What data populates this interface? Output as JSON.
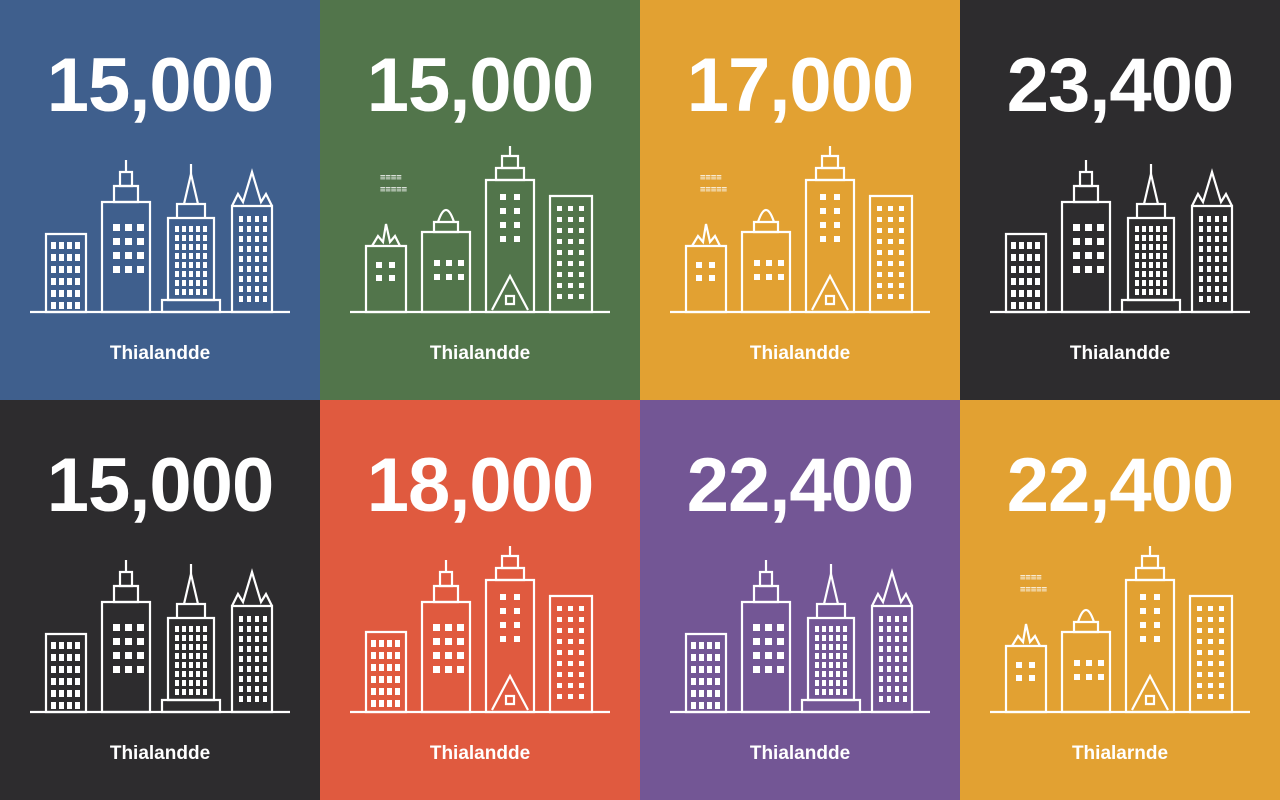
{
  "tiles": [
    {
      "number": "15,000",
      "label": "Thialandde",
      "bg": "#3f5f8d",
      "skyline": "a"
    },
    {
      "number": "15,000",
      "label": "Thialandde",
      "bg": "#52754b",
      "skyline": "b"
    },
    {
      "number": "17,000",
      "label": "Thialandde",
      "bg": "#e2a132",
      "skyline": "b"
    },
    {
      "number": "23,400",
      "label": "Thialandde",
      "bg": "#2d2c2e",
      "skyline": "a"
    },
    {
      "number": "15,000",
      "label": "Thialandde",
      "bg": "#2d2c2e",
      "skyline": "a"
    },
    {
      "number": "18,000",
      "label": "Thialandde",
      "bg": "#e05a3f",
      "skyline": "c"
    },
    {
      "number": "22,400",
      "label": "Thialandde",
      "bg": "#735695",
      "skyline": "a"
    },
    {
      "number": "22,400",
      "label": "Thialarnde",
      "bg": "#e2a132",
      "skyline": "b"
    }
  ],
  "icon": "city-skyline-icon"
}
